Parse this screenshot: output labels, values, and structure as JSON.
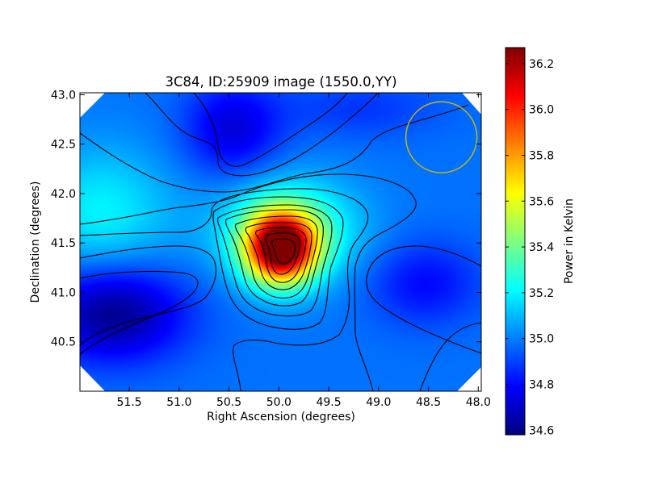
{
  "chart_data": {
    "type": "heatmap",
    "title": "3C84, ID:25909 image (1550.0,YY)",
    "xlabel": "Right Ascension (degrees)",
    "ylabel": "Declination (degrees)",
    "xlim": [
      51.995,
      47.97
    ],
    "ylim": [
      40.0,
      43.02
    ],
    "x_ticks": [
      "51.5",
      "51.0",
      "50.5",
      "50.0",
      "49.5",
      "49.0",
      "48.5",
      "48.0"
    ],
    "x_tick_values": [
      51.5,
      51.0,
      50.5,
      50.0,
      49.5,
      49.0,
      48.5,
      48.0
    ],
    "y_ticks": [
      "40.5",
      "41.0",
      "41.5",
      "42.0",
      "42.5",
      "43.0"
    ],
    "y_tick_values": [
      40.5,
      41.0,
      41.5,
      42.0,
      42.5,
      43.0
    ],
    "colormap": "jet",
    "colorbar": {
      "label": "Power in Kelvin",
      "min": 34.58,
      "max": 36.27,
      "ticks": [
        "34.6",
        "34.8",
        "35.0",
        "35.2",
        "35.4",
        "35.6",
        "35.8",
        "36.0",
        "36.2"
      ],
      "tick_values": [
        34.6,
        34.8,
        35.0,
        35.2,
        35.4,
        35.6,
        35.8,
        36.0,
        36.2
      ]
    },
    "peak": {
      "ra": 49.95,
      "dec": 41.45,
      "value": 36.25
    },
    "beam_circle": {
      "ra": 48.37,
      "dec": 42.57,
      "radius_deg": 0.37,
      "color": "#c8b400"
    },
    "contour_levels": [
      34.75,
      34.9,
      35.05,
      35.2,
      35.35,
      35.5,
      35.65,
      35.8,
      35.95,
      36.1
    ]
  }
}
